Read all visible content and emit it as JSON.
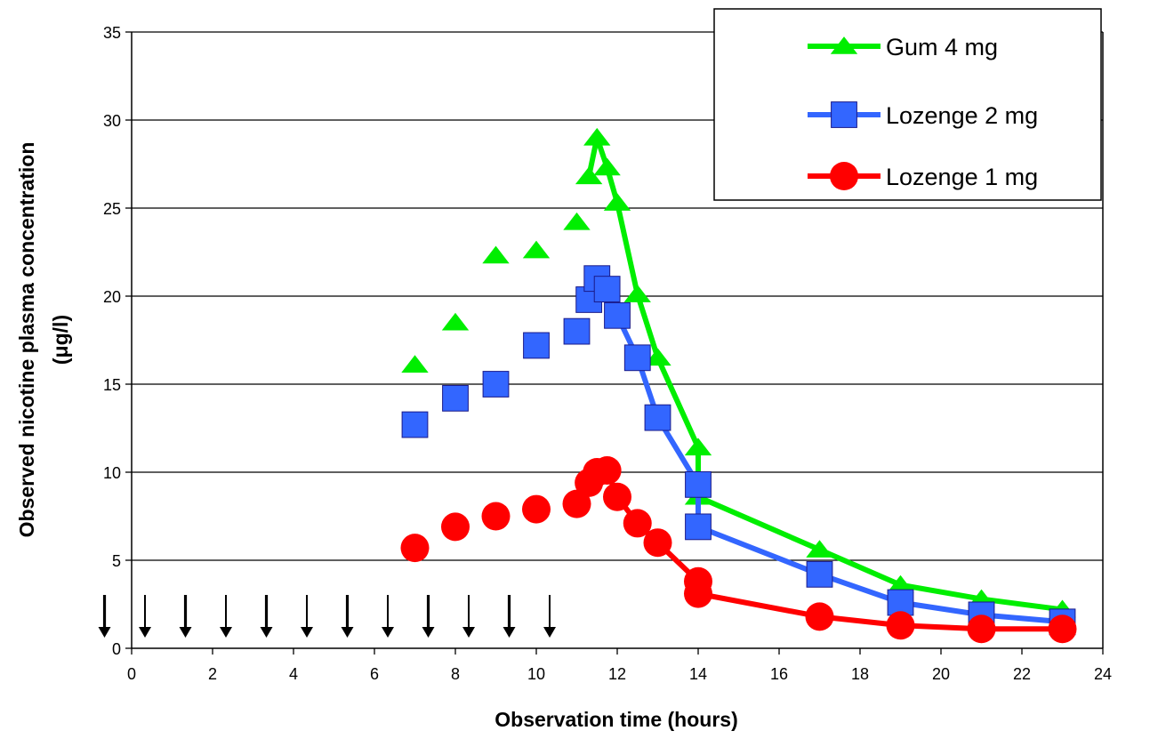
{
  "chart_data": {
    "type": "line",
    "xlabel": "Observation time (hours)",
    "ylabel": [
      "Observed nicotine plasma concentration",
      "(μg/l)"
    ],
    "xlim": [
      0,
      24
    ],
    "ylim": [
      0,
      35
    ],
    "xticks": [
      "0",
      "2",
      "4",
      "6",
      "8",
      "10",
      "12",
      "14",
      "16",
      "18",
      "20",
      "22",
      "24"
    ],
    "yticks": [
      "0",
      "5",
      "10",
      "15",
      "20",
      "25",
      "30",
      "35"
    ],
    "grid": "horizontal",
    "legend_position": "top-right",
    "series": [
      {
        "name": "Gum 4 mg",
        "color": "#00ee00",
        "marker": "triangle",
        "unconnected": [
          [
            7,
            16.1
          ],
          [
            8,
            18.5
          ],
          [
            9,
            22.3
          ],
          [
            10,
            22.6
          ],
          [
            11,
            24.2
          ]
        ],
        "line": [
          [
            11.3,
            26.8
          ],
          [
            11.5,
            29.0
          ],
          [
            11.75,
            27.3
          ],
          [
            12,
            25.3
          ],
          [
            12.5,
            20.1
          ],
          [
            13,
            16.5
          ],
          [
            14,
            11.4
          ],
          [
            14,
            8.6
          ],
          [
            17,
            5.6
          ],
          [
            19,
            3.6
          ],
          [
            21,
            2.8
          ],
          [
            23,
            2.2
          ]
        ]
      },
      {
        "name": "Lozenge 2 mg",
        "color": "#3366ff",
        "marker": "square",
        "unconnected": [
          [
            7,
            12.7
          ],
          [
            8,
            14.2
          ],
          [
            9,
            15.0
          ],
          [
            10,
            17.2
          ],
          [
            11,
            18.0
          ]
        ],
        "line": [
          [
            11.3,
            19.8
          ],
          [
            11.5,
            21.0
          ],
          [
            11.75,
            20.4
          ],
          [
            12,
            18.9
          ],
          [
            12.5,
            16.5
          ],
          [
            13,
            13.1
          ],
          [
            14,
            9.3
          ],
          [
            14,
            6.9
          ],
          [
            17,
            4.2
          ],
          [
            19,
            2.6
          ],
          [
            21,
            1.9
          ],
          [
            23,
            1.5
          ]
        ]
      },
      {
        "name": "Lozenge 1 mg",
        "color": "#ff0000",
        "marker": "circle",
        "unconnected": [
          [
            7,
            5.7
          ],
          [
            8,
            6.9
          ],
          [
            9,
            7.5
          ],
          [
            10,
            7.9
          ],
          [
            11,
            8.2
          ]
        ],
        "line": [
          [
            11.3,
            9.4
          ],
          [
            11.5,
            10.0
          ],
          [
            11.75,
            10.1
          ],
          [
            12,
            8.6
          ],
          [
            12.5,
            7.1
          ],
          [
            13,
            6.0
          ],
          [
            14,
            3.8
          ],
          [
            14,
            3.1
          ],
          [
            17,
            1.8
          ],
          [
            19,
            1.3
          ],
          [
            21,
            1.1
          ],
          [
            23,
            1.1
          ]
        ]
      }
    ],
    "dose_arrows": {
      "color": "#000000",
      "x": [
        -0.67,
        0.33,
        1.33,
        2.33,
        3.33,
        4.33,
        5.33,
        6.33,
        7.33,
        8.33,
        9.33,
        10.33
      ]
    }
  }
}
